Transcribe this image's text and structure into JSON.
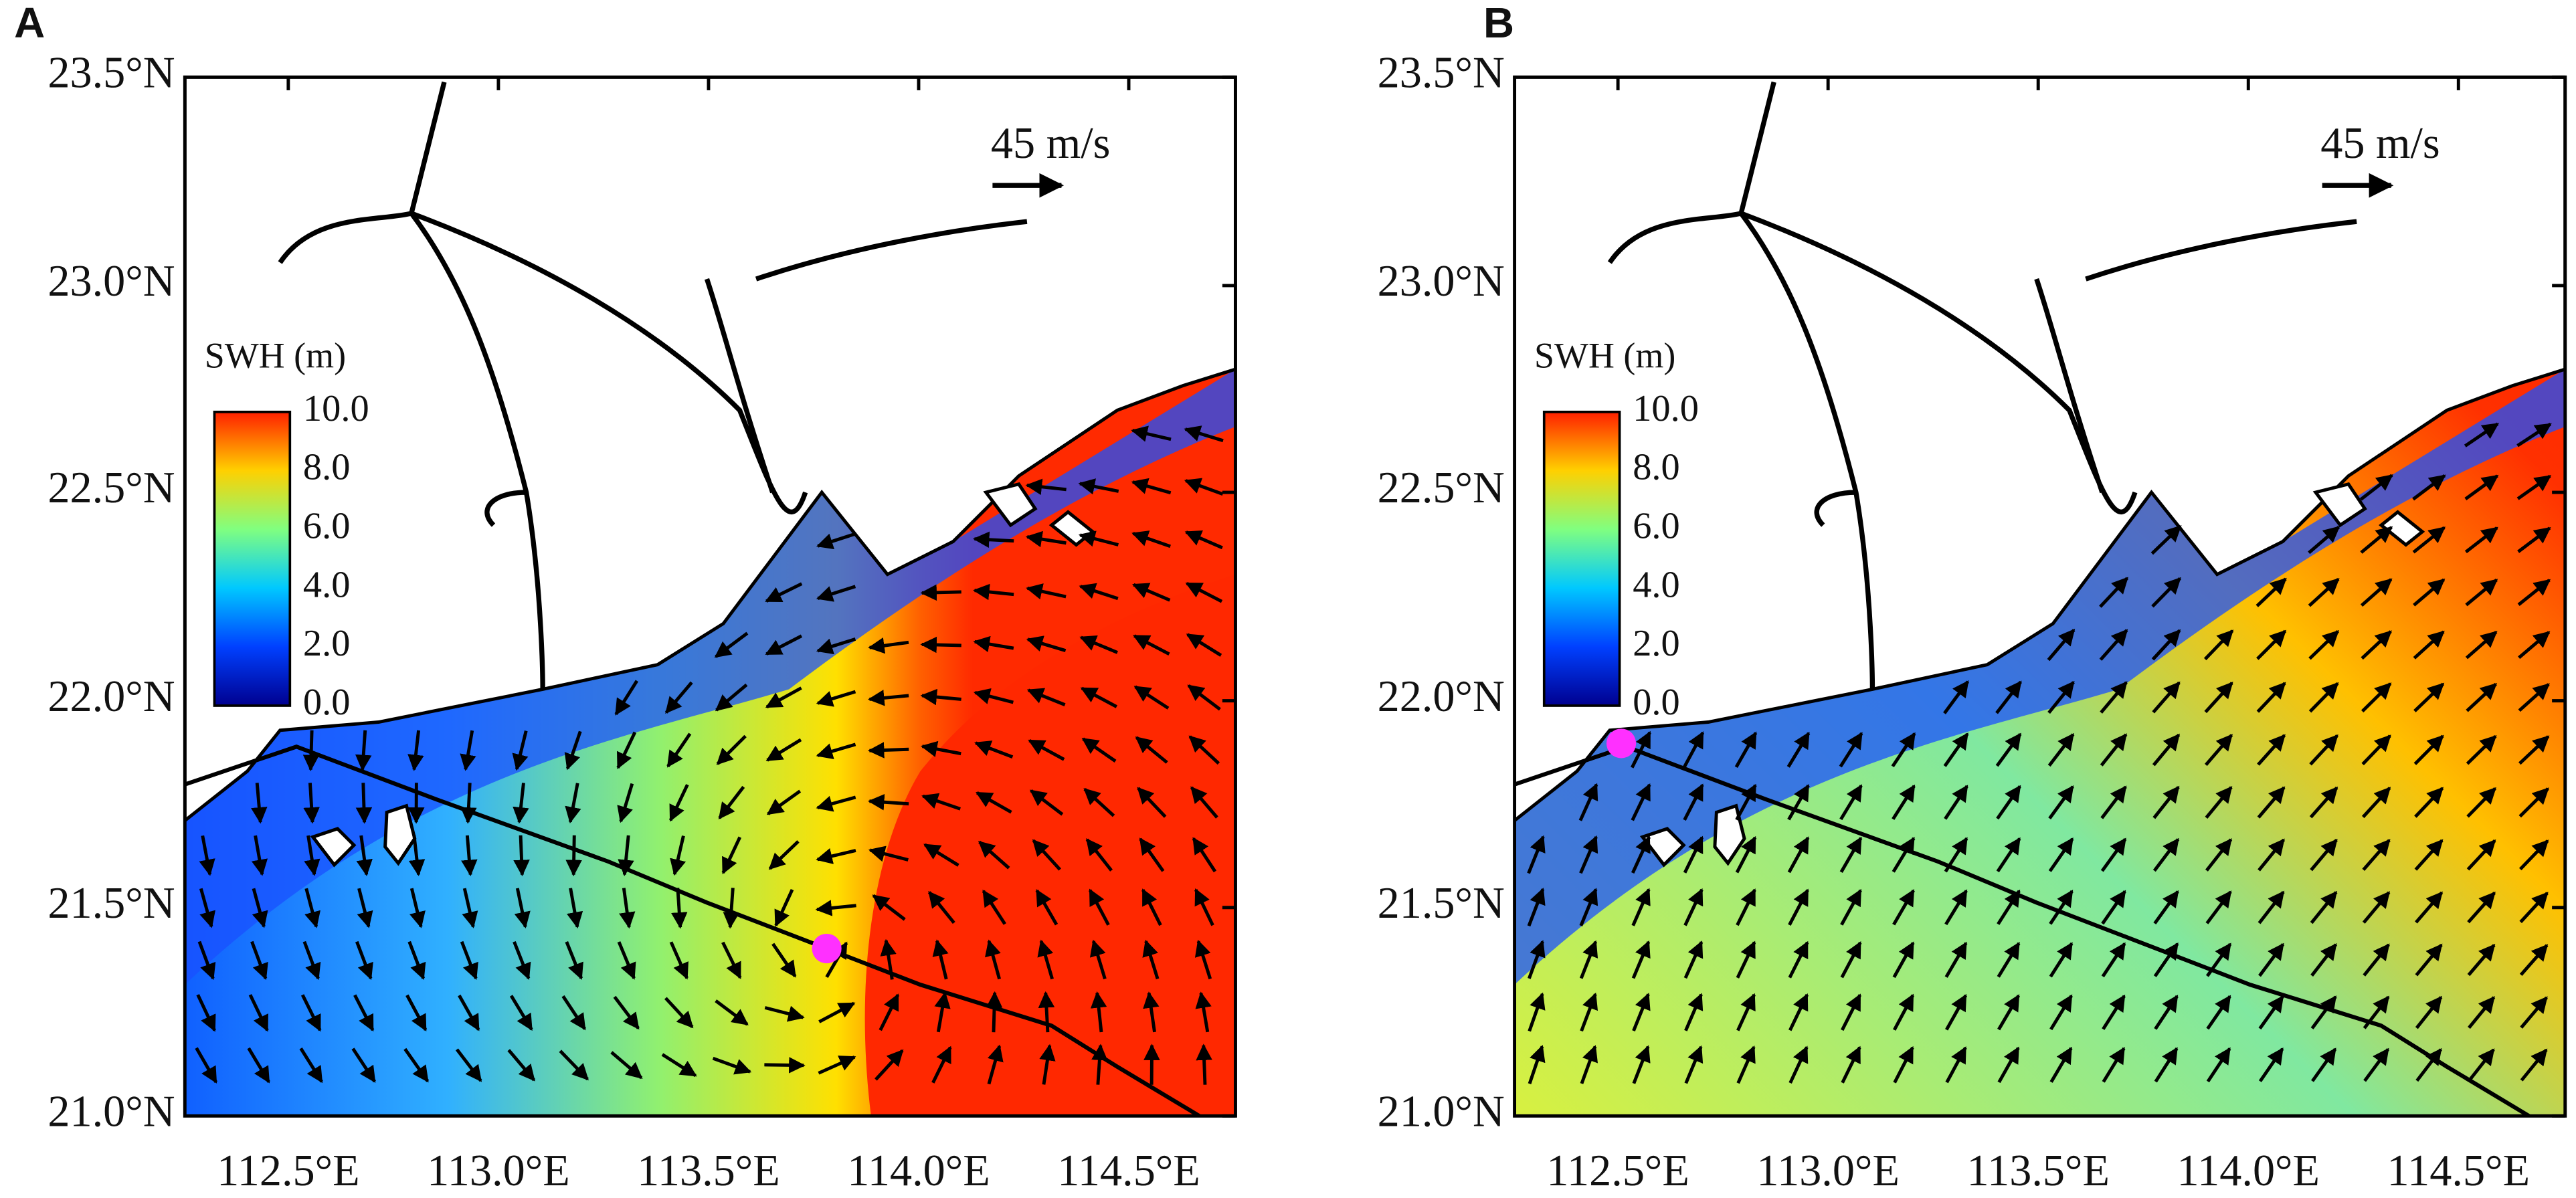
{
  "panels": [
    {
      "label": "A",
      "scale_label": "45 m/s",
      "colorbar": {
        "title": "SWH (m)",
        "ticks": [
          "10.0",
          "8.0",
          "6.0",
          "4.0",
          "2.0",
          "0.0"
        ]
      },
      "yticks": [
        "23.5°N",
        "23.0°N",
        "22.5°N",
        "22.0°N",
        "21.5°N",
        "21.0°N"
      ],
      "xticks": [
        "112.5°E",
        "113.0°E",
        "113.5°E",
        "114.0°E",
        "114.5°E"
      ]
    },
    {
      "label": "B",
      "scale_label": "45 m/s",
      "colorbar": {
        "title": "SWH (m)",
        "ticks": [
          "10.0",
          "8.0",
          "6.0",
          "4.0",
          "2.0",
          "0.0"
        ]
      },
      "yticks": [
        "23.5°N",
        "23.0°N",
        "22.5°N",
        "22.0°N",
        "21.5°N",
        "21.0°N"
      ],
      "xticks": [
        "112.5°E",
        "113.0°E",
        "113.5°E",
        "114.0°E",
        "114.5°E"
      ]
    }
  ]
}
